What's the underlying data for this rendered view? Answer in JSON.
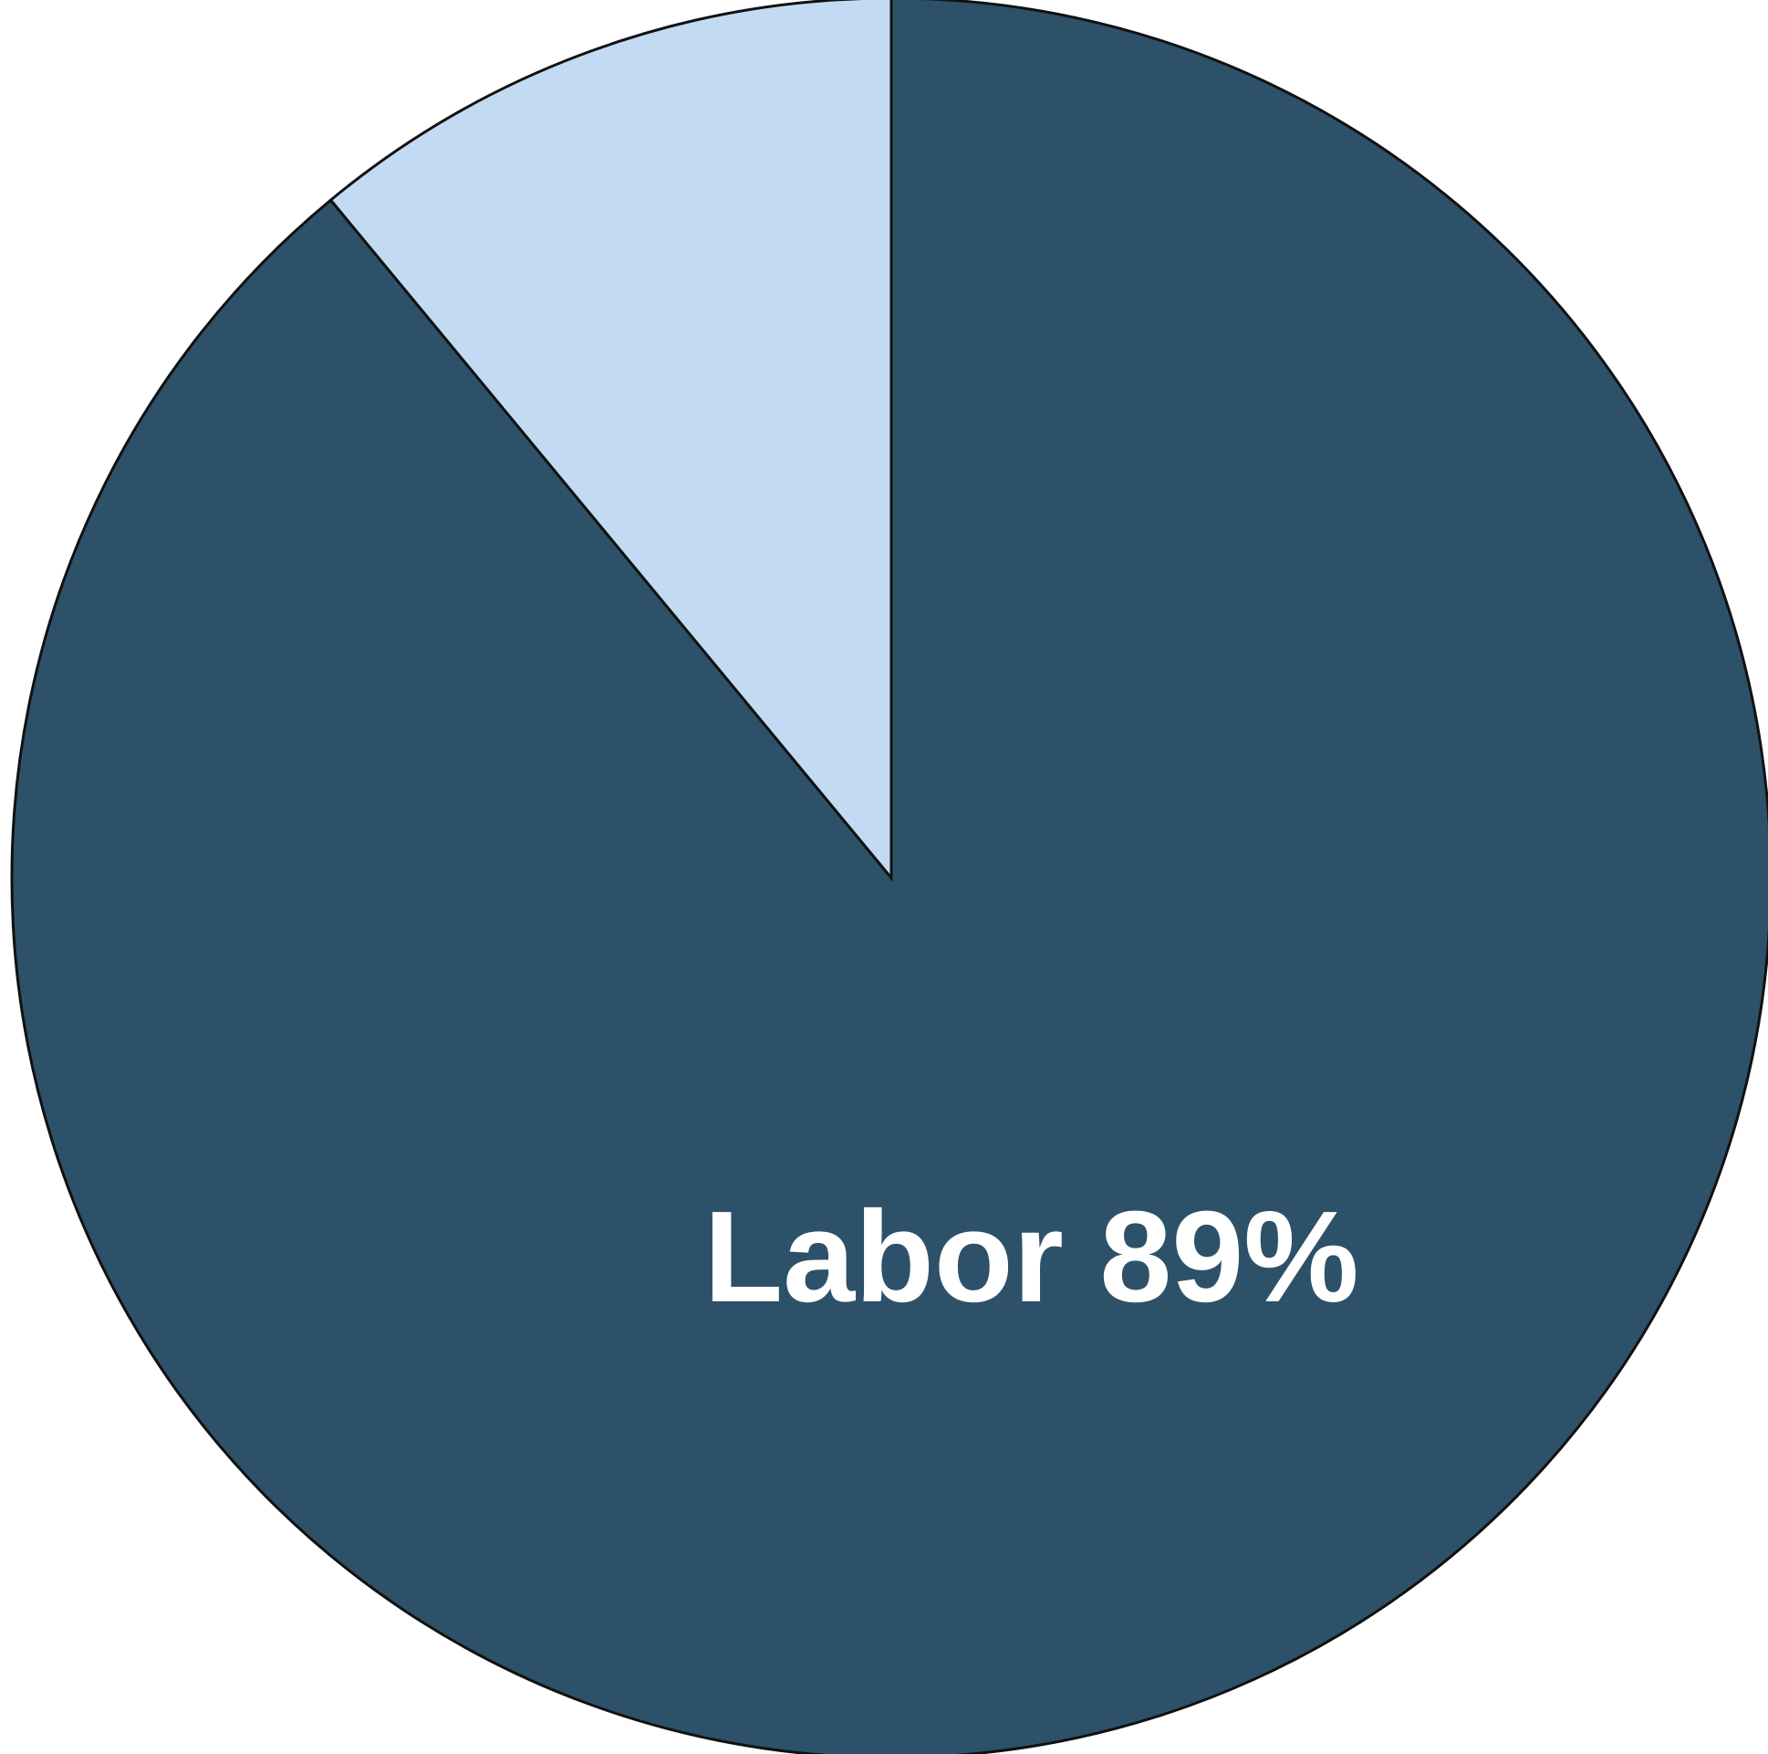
{
  "chart_data": {
    "type": "pie",
    "start_angle_deg": 0,
    "direction": "clockwise",
    "slices": [
      {
        "label": "Labor",
        "value": 89,
        "color": "#2d5168",
        "display": "Labor 89%"
      },
      {
        "label": "",
        "value": 11,
        "color": "#c2dbf3",
        "display": ""
      }
    ],
    "title": "",
    "legend": "none"
  }
}
